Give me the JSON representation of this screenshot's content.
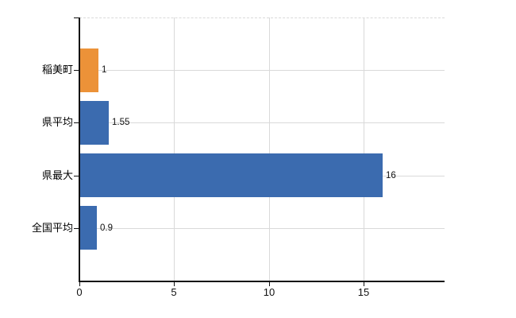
{
  "chart_data": {
    "type": "bar",
    "orientation": "horizontal",
    "title": "",
    "xlabel": "",
    "ylabel": "",
    "categories": [
      "稲美町",
      "県平均",
      "県最大",
      "全国平均"
    ],
    "values": [
      1,
      1.55,
      16,
      0.9
    ],
    "value_labels": [
      "1",
      "1.55",
      "16",
      "0.9"
    ],
    "bar_colors": [
      "#EC9238",
      "#3B6BAF",
      "#3B6BAF",
      "#3B6BAF"
    ],
    "x_ticks": [
      0,
      5,
      10,
      15
    ],
    "x_tick_labels": [
      "0",
      "5",
      "10",
      "15"
    ],
    "xlim": [
      0,
      19.25
    ],
    "grid": true,
    "legend": false,
    "colors": {
      "highlight_orange": "#EC9238",
      "series_blue": "#3B6BAF",
      "gridline": "#D9D9D9",
      "axis": "#111111",
      "label_text": "#000000"
    }
  }
}
